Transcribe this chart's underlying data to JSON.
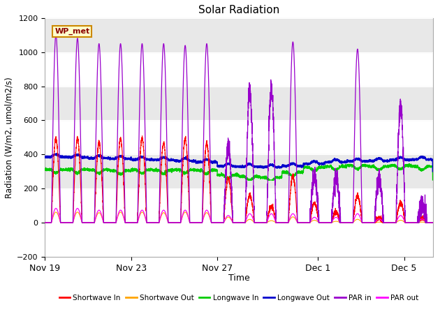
{
  "title": "Solar Radiation",
  "xlabel": "Time",
  "ylabel": "Radiation (W/m2, umol/m2/s)",
  "ylim": [
    -200,
    1200
  ],
  "yticks": [
    -200,
    0,
    200,
    400,
    600,
    800,
    1000,
    1200
  ],
  "plot_bg_color": "#ffffff",
  "band_color": "#e8e8e8",
  "legend_entries": [
    "Shortwave In",
    "Shortwave Out",
    "Longwave In",
    "Longwave Out",
    "PAR in",
    "PAR out"
  ],
  "legend_colors": [
    "#ff0000",
    "#ffa500",
    "#00cc00",
    "#0000cc",
    "#9900cc",
    "#ff00ff"
  ],
  "station_label": "WP_met",
  "xtick_labels": [
    "Nov 19",
    "Nov 23",
    "Nov 27",
    "Dec 1",
    "Dec 5"
  ],
  "xtick_positions": [
    0,
    4,
    8,
    12.67,
    16.67
  ],
  "n_days": 18,
  "sw_in_peak_scales": [
    0.95,
    0.95,
    0.9,
    0.95,
    0.95,
    0.9,
    0.95,
    0.9,
    0.5,
    0.3,
    0.18,
    0.52,
    0.22,
    0.12,
    0.3,
    0.05,
    0.22,
    0.05
  ],
  "par_in_scales": [
    1.05,
    1.03,
    1.0,
    1.0,
    1.0,
    1.0,
    0.99,
    1.0,
    0.43,
    0.73,
    0.75,
    1.01,
    0.26,
    0.26,
    0.97,
    0.25,
    0.65,
    0.1
  ],
  "par_out_scales": [
    0.08,
    0.08,
    0.07,
    0.07,
    0.07,
    0.07,
    0.07,
    0.07,
    0.04,
    0.05,
    0.05,
    0.05,
    0.03,
    0.03,
    0.05,
    0.02,
    0.04,
    0.02
  ]
}
